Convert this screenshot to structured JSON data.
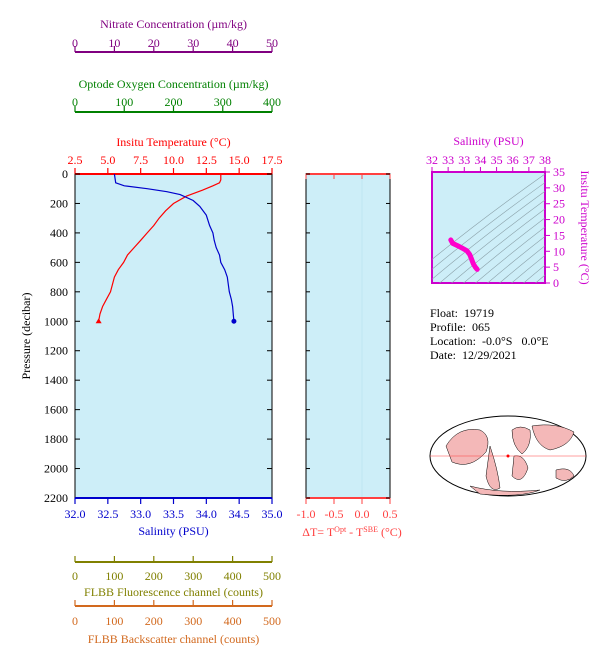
{
  "chart_data": {
    "type": "line",
    "axes": {
      "nitrate": {
        "label": "Nitrate Concentration (µm/kg)",
        "ticks": [
          "0",
          "10",
          "20",
          "30",
          "40",
          "50"
        ],
        "range": [
          0,
          50
        ],
        "color": "#800080"
      },
      "oxygen": {
        "label": "Optode Oxygen Concentration (µm/kg)",
        "ticks": [
          "0",
          "100",
          "200",
          "300",
          "400"
        ],
        "range": [
          0,
          400
        ],
        "color": "#008000"
      },
      "temperature": {
        "label": "Insitu Temperature (°C)",
        "ticks": [
          "2.5",
          "5.0",
          "7.5",
          "10.0",
          "12.5",
          "15.0",
          "17.5"
        ],
        "range": [
          2.5,
          17.5
        ],
        "color": "#ff0000"
      },
      "pressure": {
        "label": "Pressure (decibar)",
        "ticks": [
          "0",
          "200",
          "400",
          "600",
          "800",
          "1000",
          "1200",
          "1400",
          "1600",
          "1800",
          "2000",
          "2200"
        ],
        "range": [
          0,
          2200
        ],
        "color": "#000000"
      },
      "salinity": {
        "label": "Salinity (PSU)",
        "ticks": [
          "32.0",
          "32.5",
          "33.0",
          "33.5",
          "34.0",
          "34.5",
          "35.0"
        ],
        "range": [
          32.0,
          35.0
        ],
        "color": "#0000cc"
      },
      "delta_t": {
        "label": "ΔT= T",
        "sup1": "Opt",
        "mid": " - T",
        "sup2": "SBE",
        "unit": " (°C)",
        "ticks": [
          "-1.0",
          "-0.5",
          "0.0",
          "0.5"
        ],
        "range": [
          -1.0,
          0.5
        ],
        "color": "#ff4040"
      },
      "fluorescence": {
        "label": "FLBB Fluorescence channel (counts)",
        "ticks": [
          "0",
          "100",
          "200",
          "300",
          "400",
          "500"
        ],
        "range": [
          0,
          500
        ],
        "color": "#808000"
      },
      "backscatter": {
        "label": "FLBB Backscatter channel (counts)",
        "ticks": [
          "0",
          "100",
          "200",
          "300",
          "400",
          "500"
        ],
        "range": [
          0,
          500
        ],
        "color": "#d2691e"
      },
      "ts_salinity": {
        "label": "Salinity (PSU)",
        "ticks": [
          "32",
          "33",
          "33",
          "34",
          "35",
          "36",
          "37",
          "38"
        ],
        "range": [
          32,
          38
        ],
        "color": "#cc00cc"
      },
      "ts_temperature": {
        "label": "Insitu Temperature (°C)",
        "ticks": [
          "0",
          "5",
          "10",
          "15",
          "20",
          "25",
          "30",
          "35"
        ],
        "range": [
          0,
          35
        ],
        "color": "#cc00cc"
      }
    },
    "series": [
      {
        "name": "Temperature",
        "color": "#ff0000",
        "x": [
          13.6,
          13.6,
          13.5,
          13.0,
          12.2,
          11.0,
          10.0,
          9.4,
          8.9,
          8.5,
          8.0,
          7.5,
          7.0,
          6.5,
          6.2,
          5.8,
          5.5,
          5.2,
          4.9,
          4.6,
          4.4,
          4.3
        ],
        "y": [
          0,
          40,
          60,
          80,
          110,
          150,
          200,
          250,
          300,
          350,
          400,
          450,
          500,
          550,
          600,
          650,
          700,
          800,
          850,
          900,
          950,
          1000
        ]
      },
      {
        "name": "Salinity",
        "color": "#0000cc",
        "x": [
          32.6,
          32.62,
          32.75,
          33.1,
          33.4,
          33.6,
          33.8,
          33.9,
          34.0,
          34.05,
          34.1,
          34.12,
          34.15,
          34.2,
          34.22,
          34.28,
          34.32,
          34.35,
          34.38,
          34.4,
          34.42
        ],
        "y": [
          0,
          60,
          80,
          100,
          120,
          140,
          180,
          220,
          280,
          350,
          400,
          450,
          500,
          550,
          600,
          650,
          700,
          800,
          850,
          900,
          1000
        ]
      }
    ],
    "ts_series": {
      "salinity": [
        33.0,
        33.1,
        33.35,
        33.6,
        33.85,
        34.0,
        34.1,
        34.2,
        34.3,
        34.4
      ],
      "temperature": [
        13.6,
        12.5,
        11.8,
        11.0,
        10.2,
        9.0,
        7.5,
        6.0,
        5.0,
        4.3
      ]
    }
  },
  "info": {
    "float": "Float:  19719",
    "profile": "Profile:  065",
    "location": "Location:  -0.0°S   0.0°E",
    "date": "Date:  12/29/2021"
  },
  "colors": {
    "plot_bg": "#cdeef8",
    "land": "#f4b8b8",
    "ocean": "#ffffff"
  }
}
